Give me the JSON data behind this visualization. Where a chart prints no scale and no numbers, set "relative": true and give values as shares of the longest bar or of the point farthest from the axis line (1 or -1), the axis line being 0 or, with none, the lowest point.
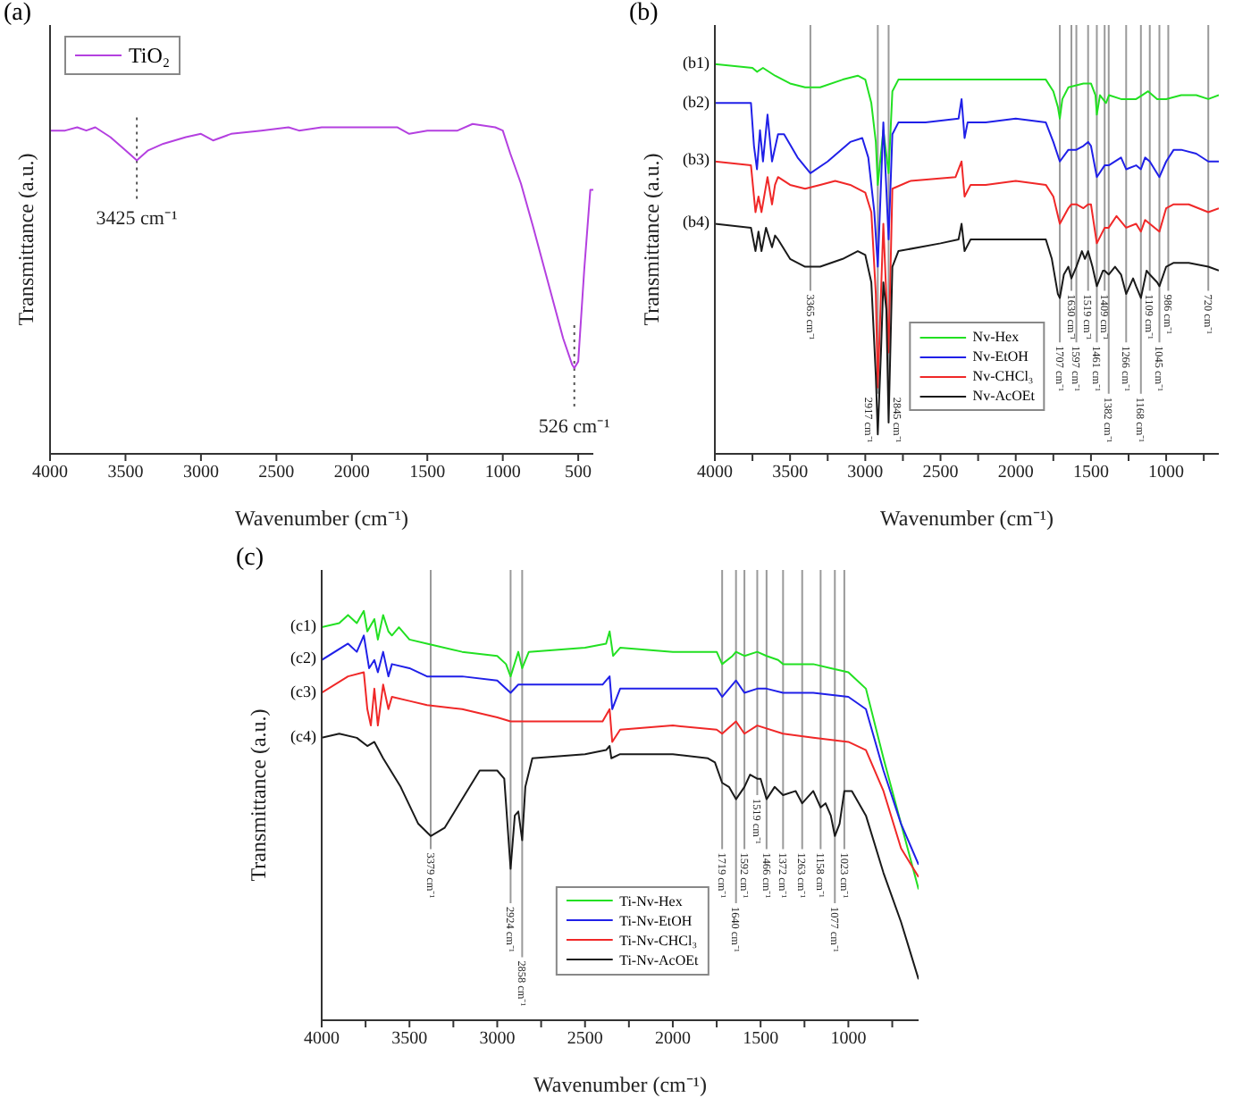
{
  "chart_data": [
    {
      "type": "line",
      "title": "(a)",
      "xlabel": "Wavenumber (cm⁻¹)",
      "ylabel": "Transmittance (a.u.)",
      "relative": true,
      "tick_labels": "x",
      "legend": "top left",
      "xlim": [
        4000,
        400
      ],
      "xticks": [
        4000,
        3500,
        3000,
        2500,
        2000,
        1500,
        1000,
        500
      ],
      "series": [
        {
          "name": "TiO₂",
          "color": "#b440e0",
          "x": [
            4000,
            3900,
            3820,
            3760,
            3700,
            3600,
            3500,
            3425,
            3350,
            3250,
            3100,
            3000,
            2920,
            2800,
            2600,
            2420,
            2350,
            2200,
            1900,
            1700,
            1620,
            1500,
            1300,
            1200,
            1050,
            1000,
            950,
            880,
            800,
            700,
            600,
            540,
            526,
            500,
            460,
            420,
            400
          ],
          "values": [
            0.98,
            0.98,
            0.99,
            0.98,
            0.99,
            0.96,
            0.92,
            0.89,
            0.92,
            0.94,
            0.96,
            0.97,
            0.95,
            0.97,
            0.98,
            0.99,
            0.98,
            0.99,
            0.99,
            0.99,
            0.97,
            0.98,
            0.98,
            1.0,
            0.99,
            0.98,
            0.91,
            0.82,
            0.69,
            0.52,
            0.35,
            0.27,
            0.26,
            0.28,
            0.56,
            0.8,
            0.8
          ]
        }
      ],
      "ref_lines": [
        {
          "axis": "x",
          "value": 3425,
          "label": "3425 cm⁻¹",
          "color": "#555555",
          "line_style": "dotted"
        },
        {
          "axis": "x",
          "value": 526,
          "label": "526 cm⁻¹",
          "color": "#555555",
          "line_style": "dotted"
        }
      ]
    },
    {
      "type": "line",
      "title": "(b)",
      "xlabel": "Wavenumber (cm⁻¹)",
      "ylabel": "Transmittance (a.u.)",
      "relative": true,
      "tick_labels": "x",
      "legend": "bottom",
      "xlim": [
        4000,
        650
      ],
      "xticks": [
        4000,
        {
          "value": 3750,
          "label": null
        },
        3500,
        {
          "value": 3250,
          "label": null
        },
        3000,
        {
          "value": 2750,
          "label": null
        },
        2500,
        {
          "value": 2250,
          "label": null
        },
        2000,
        {
          "value": 1750,
          "label": null
        },
        1500,
        {
          "value": 1250,
          "label": null
        },
        1000,
        {
          "value": 750,
          "label": null
        }
      ],
      "series": [
        {
          "name": "Nv-Hex",
          "color": "#22e022",
          "x": [
            4000,
            3750,
            3720,
            3680,
            3600,
            3500,
            3400,
            3300,
            3150,
            3050,
            3000,
            2960,
            2930,
            2917,
            2880,
            2845,
            2820,
            2780,
            2700,
            2400,
            2000,
            1800,
            1750,
            1720,
            1707,
            1690,
            1650,
            1550,
            1500,
            1470,
            1461,
            1440,
            1400,
            1380,
            1300,
            1200,
            1160,
            1120,
            1060,
            1000,
            900,
            800,
            720,
            650
          ],
          "values": [
            1.0,
            0.99,
            0.98,
            0.99,
            0.97,
            0.95,
            0.94,
            0.94,
            0.96,
            0.97,
            0.96,
            0.9,
            0.8,
            0.69,
            0.83,
            0.72,
            0.93,
            0.96,
            0.96,
            0.96,
            0.96,
            0.96,
            0.93,
            0.89,
            0.86,
            0.91,
            0.94,
            0.95,
            0.95,
            0.92,
            0.87,
            0.92,
            0.9,
            0.92,
            0.91,
            0.91,
            0.92,
            0.93,
            0.91,
            0.91,
            0.92,
            0.92,
            0.91,
            0.92
          ]
        },
        {
          "name": "Nv-EtOH",
          "color": "#2020e8",
          "x": [
            4000,
            3760,
            3740,
            3720,
            3700,
            3680,
            3650,
            3620,
            3580,
            3540,
            3450,
            3365,
            3250,
            3100,
            3020,
            2980,
            2940,
            2917,
            2880,
            2845,
            2820,
            2780,
            2600,
            2380,
            2360,
            2340,
            2320,
            2300,
            2200,
            2000,
            1800,
            1750,
            1707,
            1650,
            1597,
            1550,
            1519,
            1500,
            1461,
            1409,
            1382,
            1300,
            1266,
            1200,
            1168,
            1140,
            1109,
            1045,
            1000,
            950,
            900,
            800,
            720,
            650
          ],
          "values": [
            0.9,
            0.9,
            0.79,
            0.73,
            0.83,
            0.75,
            0.87,
            0.75,
            0.82,
            0.82,
            0.76,
            0.72,
            0.75,
            0.8,
            0.81,
            0.76,
            0.62,
            0.48,
            0.85,
            0.55,
            0.82,
            0.85,
            0.85,
            0.86,
            0.91,
            0.81,
            0.85,
            0.85,
            0.85,
            0.86,
            0.85,
            0.8,
            0.75,
            0.78,
            0.78,
            0.79,
            0.8,
            0.79,
            0.71,
            0.74,
            0.74,
            0.76,
            0.73,
            0.74,
            0.73,
            0.76,
            0.75,
            0.71,
            0.75,
            0.78,
            0.78,
            0.77,
            0.75,
            0.75
          ]
        },
        {
          "name": "Nv-CHCl₃",
          "color": "#f02828",
          "x": [
            4000,
            3760,
            3730,
            3710,
            3690,
            3650,
            3620,
            3600,
            3580,
            3500,
            3400,
            3300,
            3200,
            3100,
            3000,
            2960,
            2930,
            2917,
            2880,
            2845,
            2820,
            2700,
            2400,
            2360,
            2340,
            2300,
            2200,
            2000,
            1800,
            1750,
            1707,
            1650,
            1630,
            1597,
            1550,
            1519,
            1500,
            1461,
            1409,
            1382,
            1330,
            1266,
            1200,
            1168,
            1140,
            1109,
            1045,
            1000,
            950,
            850,
            720,
            650
          ],
          "values": [
            0.75,
            0.74,
            0.62,
            0.66,
            0.62,
            0.71,
            0.64,
            0.69,
            0.71,
            0.69,
            0.68,
            0.69,
            0.7,
            0.69,
            0.67,
            0.62,
            0.41,
            0.17,
            0.59,
            0.26,
            0.68,
            0.7,
            0.71,
            0.75,
            0.66,
            0.69,
            0.69,
            0.7,
            0.69,
            0.66,
            0.59,
            0.63,
            0.64,
            0.64,
            0.63,
            0.64,
            0.64,
            0.54,
            0.58,
            0.58,
            0.61,
            0.58,
            0.59,
            0.57,
            0.6,
            0.59,
            0.57,
            0.63,
            0.64,
            0.64,
            0.62,
            0.63
          ]
        },
        {
          "name": "Nv-AcOEt",
          "color": "#1a1a1a",
          "x": [
            4000,
            3760,
            3730,
            3710,
            3690,
            3660,
            3620,
            3600,
            3580,
            3500,
            3400,
            3300,
            3150,
            3050,
            3000,
            2960,
            2930,
            2917,
            2895,
            2880,
            2860,
            2845,
            2820,
            2780,
            2500,
            2380,
            2360,
            2340,
            2300,
            2200,
            2000,
            1800,
            1760,
            1720,
            1707,
            1680,
            1650,
            1630,
            1597,
            1560,
            1540,
            1519,
            1490,
            1461,
            1420,
            1409,
            1382,
            1340,
            1300,
            1266,
            1220,
            1200,
            1168,
            1130,
            1109,
            1060,
            1045,
            1000,
            950,
            850,
            720,
            650
          ],
          "values": [
            0.59,
            0.58,
            0.52,
            0.57,
            0.52,
            0.58,
            0.53,
            0.56,
            0.55,
            0.5,
            0.48,
            0.48,
            0.5,
            0.52,
            0.51,
            0.44,
            0.2,
            0.05,
            0.27,
            0.44,
            0.37,
            0.08,
            0.48,
            0.52,
            0.54,
            0.55,
            0.59,
            0.52,
            0.55,
            0.55,
            0.55,
            0.55,
            0.5,
            0.41,
            0.4,
            0.46,
            0.48,
            0.45,
            0.48,
            0.52,
            0.5,
            0.52,
            0.48,
            0.43,
            0.47,
            0.47,
            0.46,
            0.48,
            0.46,
            0.41,
            0.45,
            0.43,
            0.4,
            0.47,
            0.46,
            0.44,
            0.43,
            0.48,
            0.49,
            0.49,
            0.48,
            0.47
          ]
        }
      ],
      "annotations": [
        "(b1)",
        "(b2)",
        "(b3)",
        "(b4)"
      ],
      "ref_lines": [
        {
          "axis": "x",
          "value": 3365,
          "label": "3365 cm⁻¹",
          "color": "#9a9a9a",
          "line_style": "solid"
        },
        {
          "axis": "x",
          "value": 2917,
          "label": "2917 cm⁻¹",
          "color": "#9a9a9a",
          "line_style": "solid"
        },
        {
          "axis": "x",
          "value": 2845,
          "label": "2845 cm⁻¹",
          "color": "#9a9a9a",
          "line_style": "solid"
        },
        {
          "axis": "x",
          "value": 1707,
          "label": "1707 cm⁻¹",
          "color": "#9a9a9a",
          "line_style": "solid"
        },
        {
          "axis": "x",
          "value": 1630,
          "label": "1630 cm⁻¹",
          "color": "#9a9a9a",
          "line_style": "solid"
        },
        {
          "axis": "x",
          "value": 1597,
          "label": "1597 cm⁻¹",
          "color": "#9a9a9a",
          "line_style": "solid"
        },
        {
          "axis": "x",
          "value": 1519,
          "label": "1519 cm⁻¹",
          "color": "#9a9a9a",
          "line_style": "solid"
        },
        {
          "axis": "x",
          "value": 1461,
          "label": "1461 cm⁻¹",
          "color": "#9a9a9a",
          "line_style": "solid"
        },
        {
          "axis": "x",
          "value": 1409,
          "label": "1409 cm⁻¹",
          "color": "#9a9a9a",
          "line_style": "solid"
        },
        {
          "axis": "x",
          "value": 1382,
          "label": "1382 cm⁻¹",
          "color": "#9a9a9a",
          "line_style": "solid"
        },
        {
          "axis": "x",
          "value": 1266,
          "label": "1266 cm⁻¹",
          "color": "#9a9a9a",
          "line_style": "solid"
        },
        {
          "axis": "x",
          "value": 1168,
          "label": "1168 cm⁻¹",
          "color": "#9a9a9a",
          "line_style": "solid"
        },
        {
          "axis": "x",
          "value": 1109,
          "label": "1109 cm⁻¹",
          "color": "#9a9a9a",
          "line_style": "solid"
        },
        {
          "axis": "x",
          "value": 1045,
          "label": "1045 cm⁻¹",
          "color": "#9a9a9a",
          "line_style": "solid"
        },
        {
          "axis": "x",
          "value": 986,
          "label": "986 cm⁻¹",
          "color": "#9a9a9a",
          "line_style": "solid"
        },
        {
          "axis": "x",
          "value": 720,
          "label": "720 cm⁻¹",
          "color": "#9a9a9a",
          "line_style": "solid"
        }
      ]
    },
    {
      "type": "line",
      "title": "(c)",
      "xlabel": "Wavenumber (cm⁻¹)",
      "ylabel": "Transmittance (a.u.)",
      "relative": true,
      "tick_labels": "x",
      "legend": "bottom",
      "xlim": [
        4000,
        600
      ],
      "xticks": [
        4000,
        {
          "value": 3750,
          "label": null
        },
        3500,
        {
          "value": 3250,
          "label": null
        },
        3000,
        {
          "value": 2750,
          "label": null
        },
        2500,
        {
          "value": 2250,
          "label": null
        },
        2000,
        {
          "value": 1750,
          "label": null
        },
        1500,
        {
          "value": 1250,
          "label": null
        },
        1000,
        {
          "value": 750,
          "label": null
        }
      ],
      "series": [
        {
          "name": "Ti-Nv-Hex",
          "color": "#22e022",
          "x": [
            4000,
            3900,
            3850,
            3800,
            3760,
            3740,
            3700,
            3680,
            3650,
            3620,
            3600,
            3560,
            3500,
            3400,
            3200,
            3000,
            2950,
            2924,
            2880,
            2858,
            2820,
            2500,
            2380,
            2360,
            2340,
            2300,
            2000,
            1750,
            1719,
            1660,
            1640,
            1592,
            1519,
            1466,
            1400,
            1372,
            1200,
            1100,
            1000,
            900,
            800,
            700,
            600
          ],
          "values": [
            0.96,
            0.97,
            0.99,
            0.97,
            1.0,
            0.95,
            0.98,
            0.93,
            0.99,
            0.95,
            0.94,
            0.96,
            0.93,
            0.92,
            0.9,
            0.89,
            0.87,
            0.84,
            0.9,
            0.86,
            0.9,
            0.91,
            0.92,
            0.95,
            0.89,
            0.91,
            0.9,
            0.9,
            0.87,
            0.89,
            0.9,
            0.89,
            0.9,
            0.89,
            0.88,
            0.87,
            0.87,
            0.86,
            0.85,
            0.81,
            0.64,
            0.48,
            0.32
          ]
        },
        {
          "name": "Ti-Nv-EtOH",
          "color": "#2020e8",
          "x": [
            4000,
            3850,
            3800,
            3760,
            3730,
            3700,
            3680,
            3650,
            3620,
            3600,
            3500,
            3400,
            3200,
            3000,
            2924,
            2880,
            2800,
            2400,
            2360,
            2345,
            2300,
            2000,
            1750,
            1719,
            1640,
            1592,
            1519,
            1466,
            1372,
            1200,
            1000,
            900,
            800,
            700,
            600
          ],
          "values": [
            0.88,
            0.92,
            0.9,
            0.94,
            0.86,
            0.88,
            0.85,
            0.9,
            0.84,
            0.87,
            0.86,
            0.84,
            0.84,
            0.83,
            0.8,
            0.82,
            0.82,
            0.82,
            0.84,
            0.76,
            0.81,
            0.81,
            0.81,
            0.79,
            0.83,
            0.8,
            0.81,
            0.81,
            0.8,
            0.8,
            0.79,
            0.76,
            0.61,
            0.48,
            0.38
          ]
        },
        {
          "name": "Ti-Nv-CHCl₃",
          "color": "#f02828",
          "x": [
            4000,
            3850,
            3760,
            3740,
            3720,
            3700,
            3680,
            3650,
            3620,
            3600,
            3500,
            3400,
            3200,
            3000,
            2924,
            2880,
            2400,
            2360,
            2345,
            2300,
            2000,
            1750,
            1719,
            1640,
            1592,
            1519,
            1372,
            1200,
            1000,
            900,
            800,
            700,
            600
          ],
          "values": [
            0.8,
            0.84,
            0.85,
            0.76,
            0.72,
            0.81,
            0.72,
            0.82,
            0.76,
            0.79,
            0.78,
            0.77,
            0.76,
            0.74,
            0.73,
            0.73,
            0.73,
            0.76,
            0.68,
            0.71,
            0.72,
            0.71,
            0.7,
            0.73,
            0.7,
            0.72,
            0.7,
            0.69,
            0.68,
            0.66,
            0.56,
            0.42,
            0.35
          ]
        },
        {
          "name": "Ti-Nv-AcOEt",
          "color": "#1a1a1a",
          "x": [
            4000,
            3900,
            3800,
            3740,
            3700,
            3650,
            3550,
            3450,
            3379,
            3300,
            3200,
            3100,
            3000,
            2960,
            2924,
            2900,
            2880,
            2858,
            2840,
            2800,
            2500,
            2380,
            2360,
            2350,
            2300,
            2000,
            1800,
            1760,
            1719,
            1680,
            1640,
            1592,
            1560,
            1519,
            1500,
            1466,
            1420,
            1372,
            1300,
            1263,
            1200,
            1158,
            1130,
            1100,
            1077,
            1050,
            1023,
            980,
            900,
            800,
            700,
            600
          ],
          "values": [
            0.69,
            0.7,
            0.69,
            0.67,
            0.68,
            0.64,
            0.57,
            0.48,
            0.45,
            0.47,
            0.54,
            0.61,
            0.61,
            0.59,
            0.37,
            0.5,
            0.51,
            0.44,
            0.57,
            0.64,
            0.65,
            0.66,
            0.67,
            0.64,
            0.65,
            0.65,
            0.64,
            0.63,
            0.58,
            0.57,
            0.54,
            0.57,
            0.6,
            0.59,
            0.59,
            0.54,
            0.57,
            0.55,
            0.56,
            0.53,
            0.56,
            0.52,
            0.53,
            0.5,
            0.45,
            0.48,
            0.56,
            0.56,
            0.5,
            0.36,
            0.24,
            0.1
          ]
        }
      ],
      "annotations": [
        "(c1)",
        "(c2)",
        "(c3)",
        "(c4)"
      ],
      "ref_lines": [
        {
          "axis": "x",
          "value": 3379,
          "label": "3379 cm⁻¹",
          "color": "#9a9a9a",
          "line_style": "solid"
        },
        {
          "axis": "x",
          "value": 2924,
          "label": "2924 cm⁻¹",
          "color": "#9a9a9a",
          "line_style": "solid"
        },
        {
          "axis": "x",
          "value": 2858,
          "label": "2858 cm⁻¹",
          "color": "#9a9a9a",
          "line_style": "solid"
        },
        {
          "axis": "x",
          "value": 1719,
          "label": "1719 cm⁻¹",
          "color": "#9a9a9a",
          "line_style": "solid"
        },
        {
          "axis": "x",
          "value": 1640,
          "label": "1640 cm⁻¹",
          "color": "#9a9a9a",
          "line_style": "solid"
        },
        {
          "axis": "x",
          "value": 1592,
          "label": "1592 cm⁻¹",
          "color": "#9a9a9a",
          "line_style": "solid"
        },
        {
          "axis": "x",
          "value": 1519,
          "label": "1519 cm⁻¹",
          "color": "#9a9a9a",
          "line_style": "solid"
        },
        {
          "axis": "x",
          "value": 1466,
          "label": "1466 cm⁻¹",
          "color": "#9a9a9a",
          "line_style": "solid"
        },
        {
          "axis": "x",
          "value": 1372,
          "label": "1372 cm⁻¹",
          "color": "#9a9a9a",
          "line_style": "solid"
        },
        {
          "axis": "x",
          "value": 1263,
          "label": "1263 cm⁻¹",
          "color": "#9a9a9a",
          "line_style": "solid"
        },
        {
          "axis": "x",
          "value": 1158,
          "label": "1158 cm⁻¹",
          "color": "#9a9a9a",
          "line_style": "solid"
        },
        {
          "axis": "x",
          "value": 1077,
          "label": "1077 cm⁻¹",
          "color": "#9a9a9a",
          "line_style": "solid"
        },
        {
          "axis": "x",
          "value": 1023,
          "label": "1023 cm⁻¹",
          "color": "#9a9a9a",
          "line_style": "solid"
        }
      ]
    }
  ]
}
